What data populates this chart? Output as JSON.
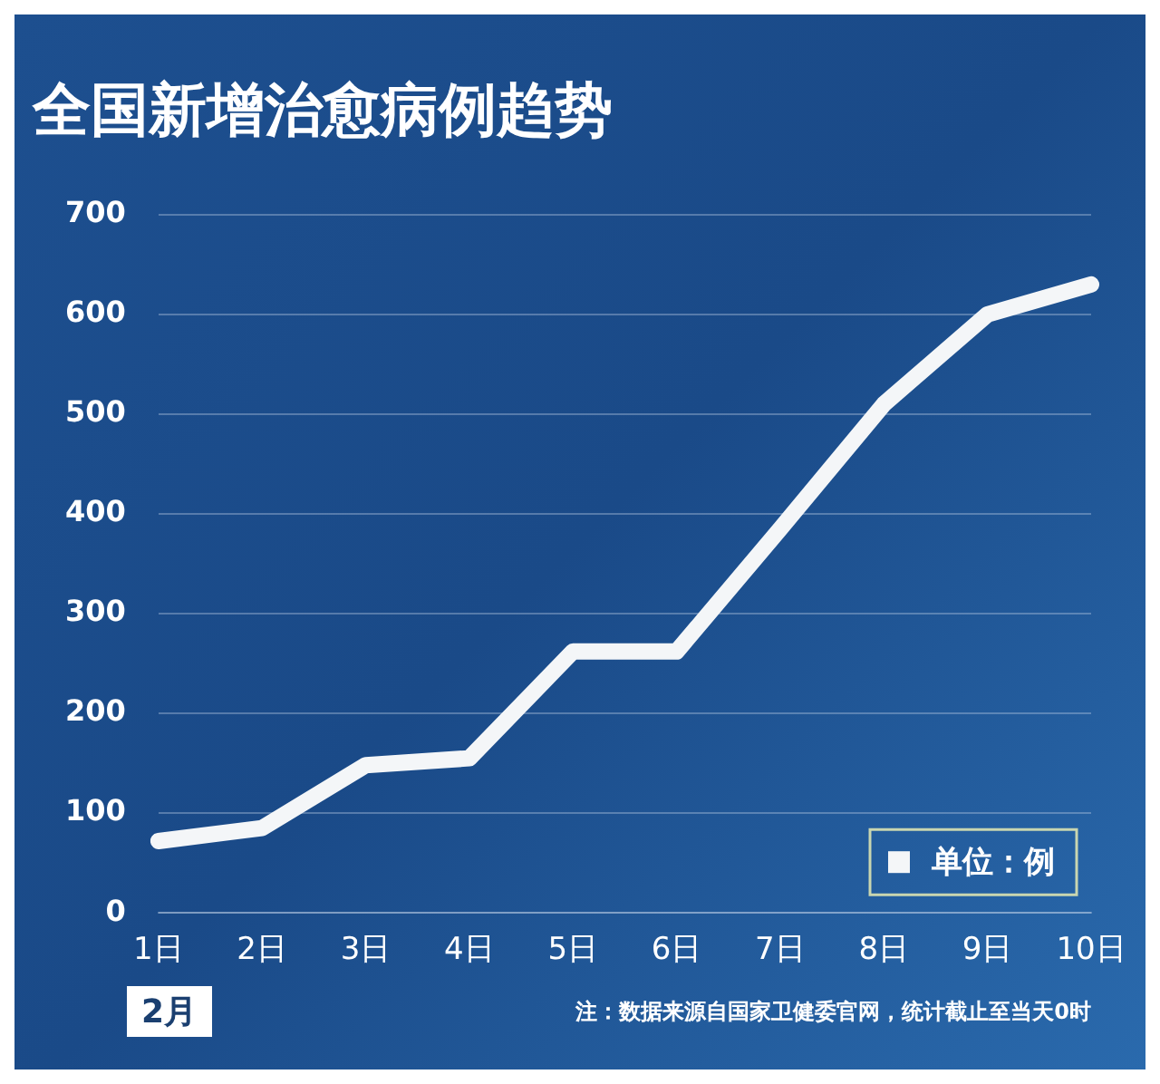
{
  "chart_data": {
    "type": "line",
    "title": "全国新增治愈病例趋势",
    "xlabel": "2月",
    "categories": [
      "1日",
      "2日",
      "3日",
      "4日",
      "5日",
      "6日",
      "7日",
      "8日",
      "9日",
      "10日"
    ],
    "series": [
      {
        "name": "单位：例",
        "color": "#f4f6f8",
        "values": [
          72,
          85,
          148,
          155,
          262,
          262,
          385,
          510,
          600,
          630
        ]
      }
    ],
    "ylim": [
      0,
      700
    ],
    "yticks": [
      0,
      100,
      200,
      300,
      400,
      500,
      600,
      700
    ],
    "grid": "y",
    "legend": "bottom right",
    "marker": "none",
    "line_style": "solid",
    "annotations": [
      "注：数据来源自国家卫健委官网，统计截止至当天0时"
    ]
  }
}
